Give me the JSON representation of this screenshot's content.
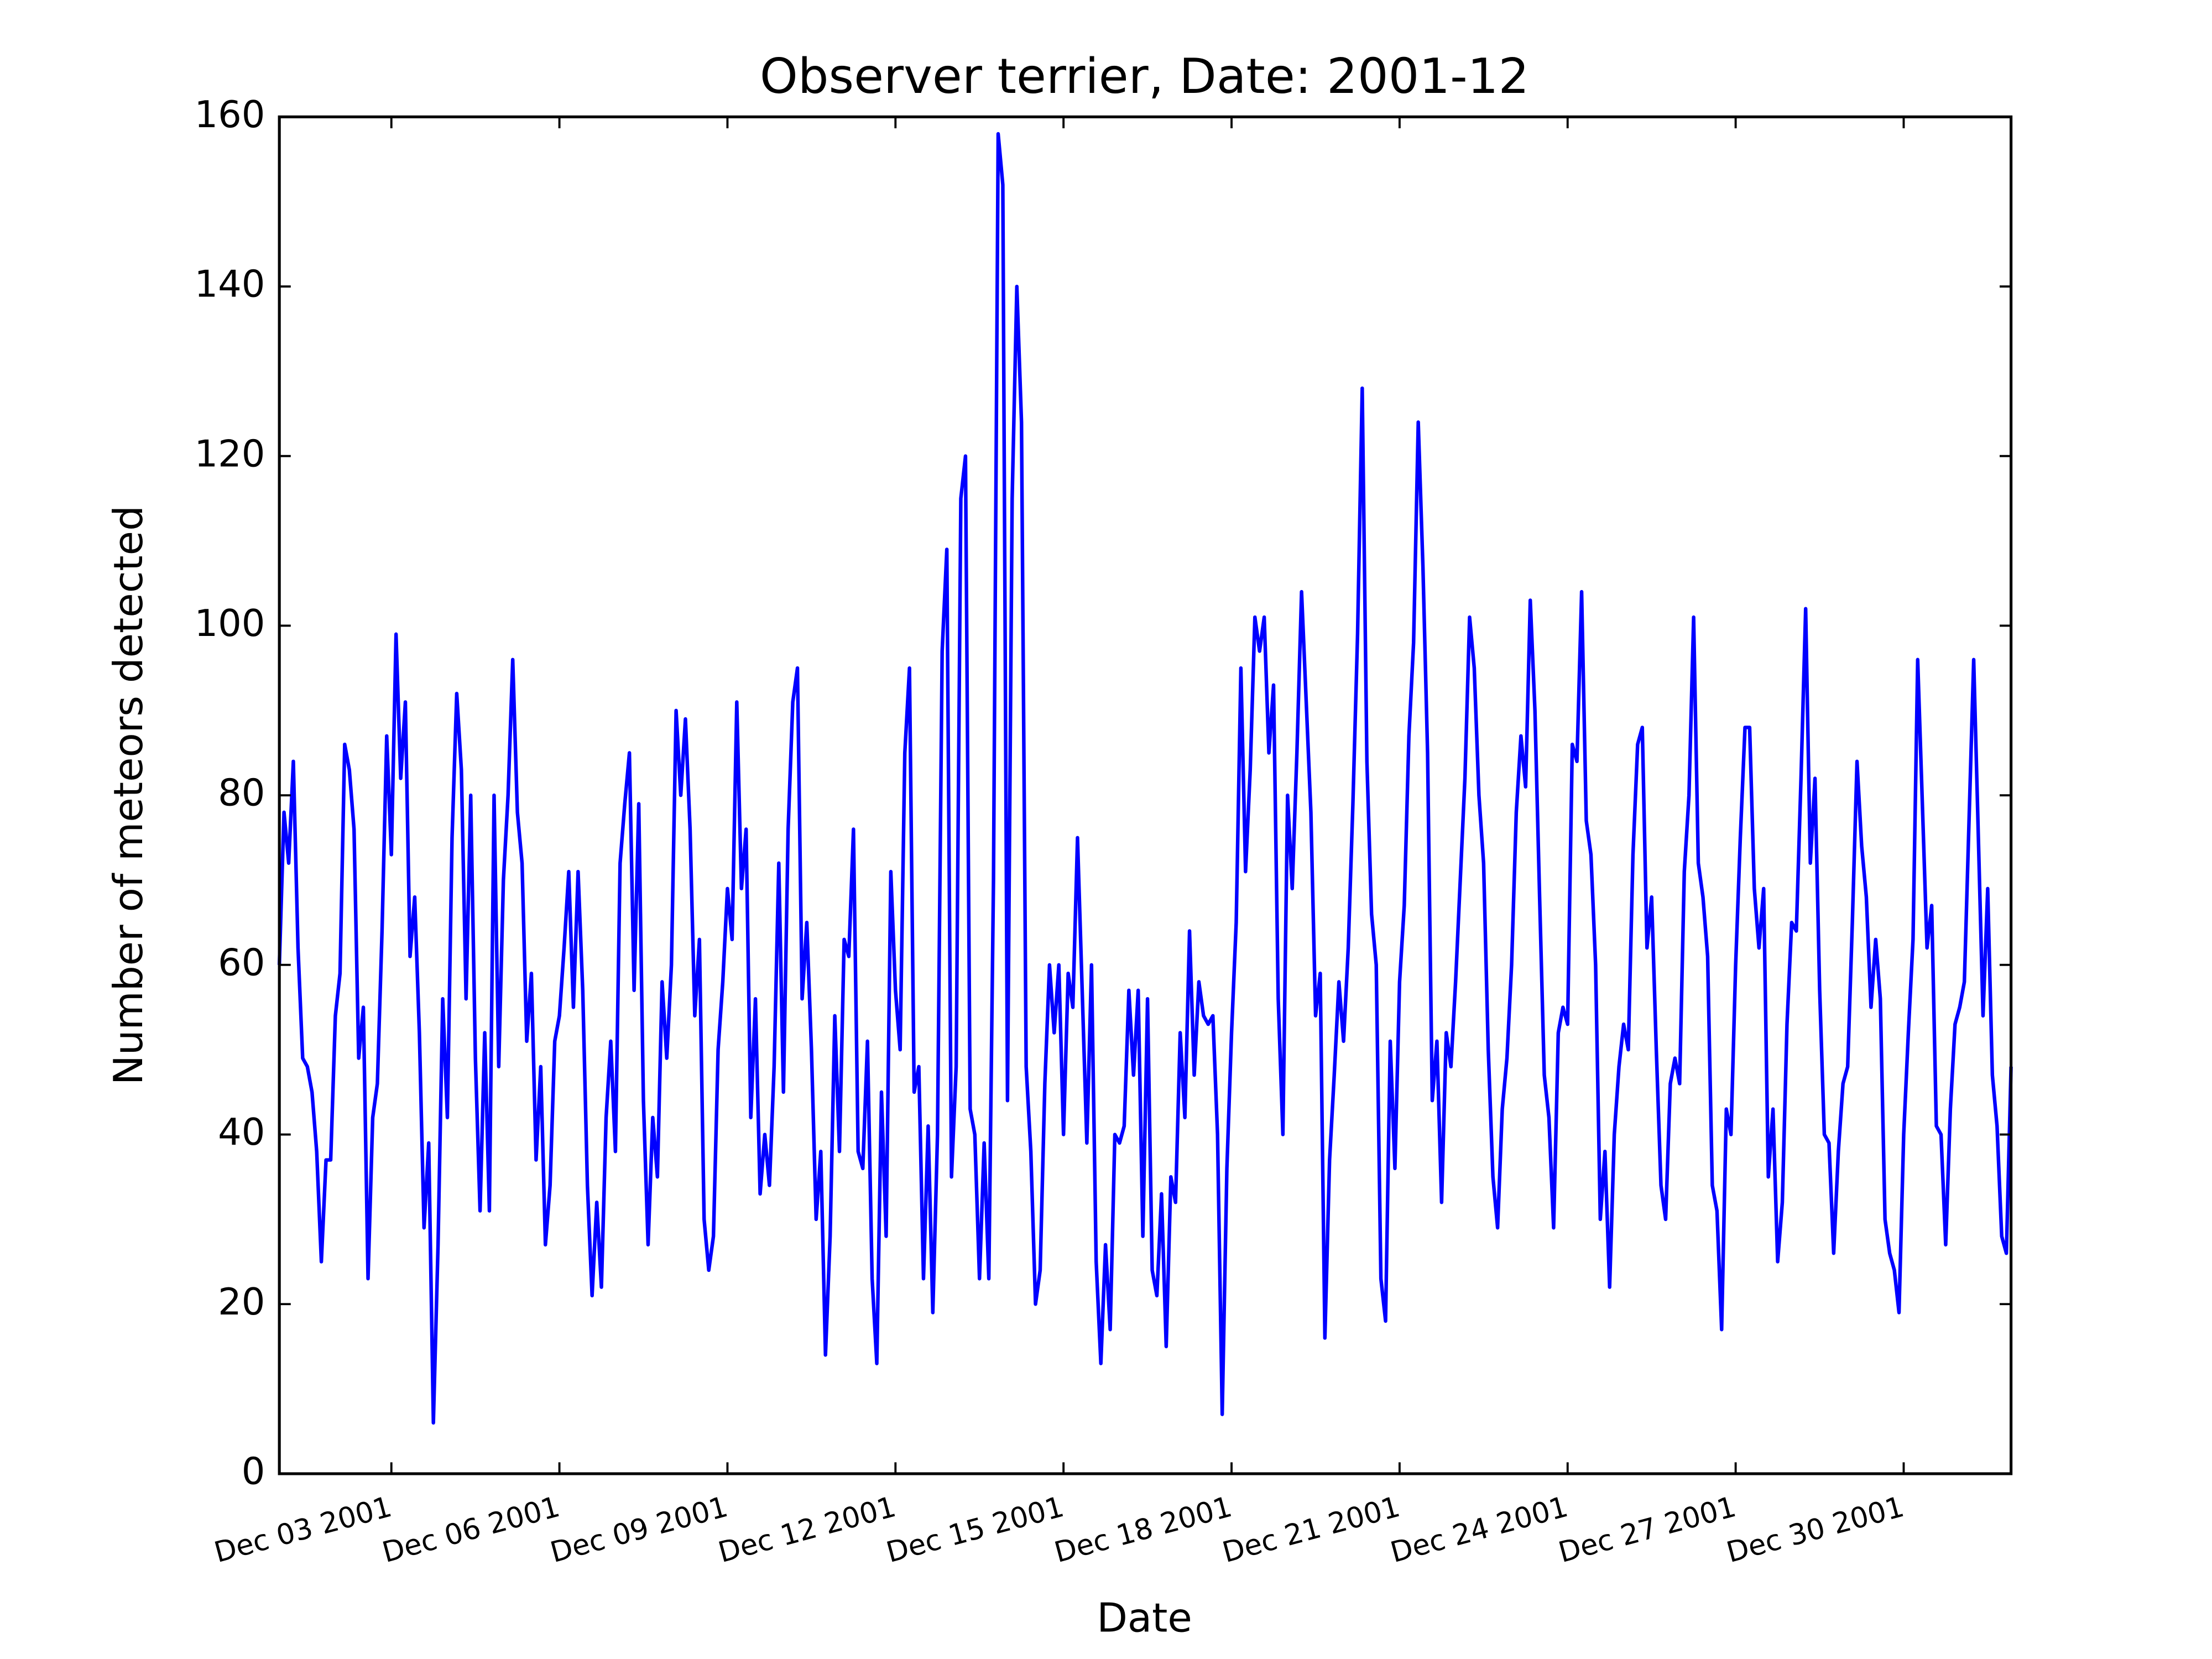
{
  "chart_data": {
    "type": "line",
    "title": "Observer terrier, Date: 2001-12",
    "xlabel": "Date",
    "ylabel": "Number of meteors detected",
    "color": "#0000ff",
    "ylim": [
      0,
      160
    ],
    "yticks": [
      0,
      20,
      40,
      60,
      80,
      100,
      120,
      140,
      160
    ],
    "xlim": [
      "2001-12-01 00:00",
      "2001-12-31 22:00"
    ],
    "xticks": [
      {
        "value": "2001-12-03 00:00",
        "label": "Dec 03 2001"
      },
      {
        "value": "2001-12-06 00:00",
        "label": "Dec 06 2001"
      },
      {
        "value": "2001-12-09 00:00",
        "label": "Dec 09 2001"
      },
      {
        "value": "2001-12-12 00:00",
        "label": "Dec 12 2001"
      },
      {
        "value": "2001-12-15 00:00",
        "label": "Dec 15 2001"
      },
      {
        "value": "2001-12-18 00:00",
        "label": "Dec 18 2001"
      },
      {
        "value": "2001-12-21 00:00",
        "label": "Dec 21 2001"
      },
      {
        "value": "2001-12-24 00:00",
        "label": "Dec 24 2001"
      },
      {
        "value": "2001-12-27 00:00",
        "label": "Dec 27 2001"
      },
      {
        "value": "2001-12-30 00:00",
        "label": "Dec 30 2001"
      }
    ],
    "x": [
      "2001-12-01 00:00",
      "2001-12-01 02:00",
      "2001-12-01 04:00",
      "2001-12-01 06:00",
      "2001-12-01 08:00",
      "2001-12-01 10:00",
      "2001-12-01 12:00",
      "2001-12-01 14:00",
      "2001-12-01 16:00",
      "2001-12-01 18:00",
      "2001-12-01 20:00",
      "2001-12-01 22:00",
      "2001-12-02 00:00",
      "2001-12-02 02:00",
      "2001-12-02 04:00",
      "2001-12-02 06:00",
      "2001-12-02 08:00",
      "2001-12-02 10:00",
      "2001-12-02 12:00",
      "2001-12-02 14:00",
      "2001-12-02 16:00",
      "2001-12-02 18:00",
      "2001-12-02 20:00",
      "2001-12-02 22:00",
      "2001-12-03 00:00",
      "2001-12-03 02:00",
      "2001-12-03 04:00",
      "2001-12-03 06:00",
      "2001-12-03 08:00",
      "2001-12-03 10:00",
      "2001-12-03 12:00",
      "2001-12-03 14:00",
      "2001-12-03 16:00",
      "2001-12-03 18:00",
      "2001-12-03 20:00",
      "2001-12-03 22:00",
      "2001-12-04 00:00",
      "2001-12-04 02:00",
      "2001-12-04 04:00",
      "2001-12-04 06:00",
      "2001-12-04 08:00",
      "2001-12-04 10:00",
      "2001-12-04 12:00",
      "2001-12-04 14:00",
      "2001-12-04 16:00",
      "2001-12-04 18:00",
      "2001-12-04 20:00",
      "2001-12-04 22:00",
      "2001-12-05 00:00",
      "2001-12-05 02:00",
      "2001-12-05 04:00",
      "2001-12-05 06:00",
      "2001-12-05 08:00",
      "2001-12-05 10:00",
      "2001-12-05 12:00",
      "2001-12-05 14:00",
      "2001-12-05 16:00",
      "2001-12-05 18:00",
      "2001-12-05 20:00",
      "2001-12-05 22:00",
      "2001-12-06 00:00",
      "2001-12-06 02:00",
      "2001-12-06 04:00",
      "2001-12-06 06:00",
      "2001-12-06 08:00",
      "2001-12-06 10:00",
      "2001-12-06 12:00",
      "2001-12-06 14:00",
      "2001-12-06 16:00",
      "2001-12-06 18:00",
      "2001-12-06 20:00",
      "2001-12-06 22:00",
      "2001-12-07 00:00",
      "2001-12-07 02:00",
      "2001-12-07 04:00",
      "2001-12-07 06:00",
      "2001-12-07 08:00",
      "2001-12-07 10:00",
      "2001-12-07 12:00",
      "2001-12-07 14:00",
      "2001-12-07 16:00",
      "2001-12-07 18:00",
      "2001-12-07 20:00",
      "2001-12-07 22:00",
      "2001-12-08 00:00",
      "2001-12-08 02:00",
      "2001-12-08 04:00",
      "2001-12-08 06:00",
      "2001-12-08 08:00",
      "2001-12-08 10:00",
      "2001-12-08 12:00",
      "2001-12-08 14:00",
      "2001-12-08 16:00",
      "2001-12-08 18:00",
      "2001-12-08 20:00",
      "2001-12-08 22:00",
      "2001-12-09 00:00",
      "2001-12-09 02:00",
      "2001-12-09 04:00",
      "2001-12-09 06:00",
      "2001-12-09 08:00",
      "2001-12-09 10:00",
      "2001-12-09 12:00",
      "2001-12-09 14:00",
      "2001-12-09 16:00",
      "2001-12-09 18:00",
      "2001-12-09 20:00",
      "2001-12-09 22:00",
      "2001-12-10 00:00",
      "2001-12-10 02:00",
      "2001-12-10 04:00",
      "2001-12-10 06:00",
      "2001-12-10 08:00",
      "2001-12-10 10:00",
      "2001-12-10 12:00",
      "2001-12-10 14:00",
      "2001-12-10 16:00",
      "2001-12-10 18:00",
      "2001-12-10 20:00",
      "2001-12-10 22:00",
      "2001-12-11 00:00",
      "2001-12-11 02:00",
      "2001-12-11 04:00",
      "2001-12-11 06:00",
      "2001-12-11 08:00",
      "2001-12-11 10:00",
      "2001-12-11 12:00",
      "2001-12-11 14:00",
      "2001-12-11 16:00",
      "2001-12-11 18:00",
      "2001-12-11 20:00",
      "2001-12-11 22:00",
      "2001-12-12 00:00",
      "2001-12-12 02:00",
      "2001-12-12 04:00",
      "2001-12-12 06:00",
      "2001-12-12 08:00",
      "2001-12-12 10:00",
      "2001-12-12 12:00",
      "2001-12-12 14:00",
      "2001-12-12 16:00",
      "2001-12-12 18:00",
      "2001-12-12 20:00",
      "2001-12-12 22:00",
      "2001-12-13 00:00",
      "2001-12-13 02:00",
      "2001-12-13 04:00",
      "2001-12-13 06:00",
      "2001-12-13 08:00",
      "2001-12-13 10:00",
      "2001-12-13 12:00",
      "2001-12-13 14:00",
      "2001-12-13 16:00",
      "2001-12-13 18:00",
      "2001-12-13 20:00",
      "2001-12-13 22:00",
      "2001-12-14 00:00",
      "2001-12-14 02:00",
      "2001-12-14 04:00",
      "2001-12-14 06:00",
      "2001-12-14 08:00",
      "2001-12-14 10:00",
      "2001-12-14 12:00",
      "2001-12-14 14:00",
      "2001-12-14 16:00",
      "2001-12-14 18:00",
      "2001-12-14 20:00",
      "2001-12-14 22:00",
      "2001-12-15 00:00",
      "2001-12-15 02:00",
      "2001-12-15 04:00",
      "2001-12-15 06:00",
      "2001-12-15 08:00",
      "2001-12-15 10:00",
      "2001-12-15 12:00",
      "2001-12-15 14:00",
      "2001-12-15 16:00",
      "2001-12-15 18:00",
      "2001-12-15 20:00",
      "2001-12-15 22:00",
      "2001-12-16 00:00",
      "2001-12-16 02:00",
      "2001-12-16 04:00",
      "2001-12-16 06:00",
      "2001-12-16 08:00",
      "2001-12-16 10:00",
      "2001-12-16 12:00",
      "2001-12-16 14:00",
      "2001-12-16 16:00",
      "2001-12-16 18:00",
      "2001-12-16 20:00",
      "2001-12-16 22:00",
      "2001-12-17 00:00",
      "2001-12-17 02:00",
      "2001-12-17 04:00",
      "2001-12-17 06:00",
      "2001-12-17 08:00",
      "2001-12-17 10:00",
      "2001-12-17 12:00",
      "2001-12-17 14:00",
      "2001-12-17 16:00",
      "2001-12-17 18:00",
      "2001-12-17 20:00",
      "2001-12-17 22:00",
      "2001-12-18 00:00",
      "2001-12-18 02:00",
      "2001-12-18 04:00",
      "2001-12-18 06:00",
      "2001-12-18 08:00",
      "2001-12-18 10:00",
      "2001-12-18 12:00",
      "2001-12-18 14:00",
      "2001-12-18 16:00",
      "2001-12-18 18:00",
      "2001-12-18 20:00",
      "2001-12-18 22:00",
      "2001-12-19 00:00",
      "2001-12-19 02:00",
      "2001-12-19 04:00",
      "2001-12-19 06:00",
      "2001-12-19 08:00",
      "2001-12-19 10:00",
      "2001-12-19 12:00",
      "2001-12-19 14:00",
      "2001-12-19 16:00",
      "2001-12-19 18:00",
      "2001-12-19 20:00",
      "2001-12-19 22:00",
      "2001-12-20 00:00",
      "2001-12-20 02:00",
      "2001-12-20 04:00",
      "2001-12-20 06:00",
      "2001-12-20 08:00",
      "2001-12-20 10:00",
      "2001-12-20 12:00",
      "2001-12-20 14:00",
      "2001-12-20 16:00",
      "2001-12-20 18:00",
      "2001-12-20 20:00",
      "2001-12-20 22:00",
      "2001-12-21 00:00",
      "2001-12-21 02:00",
      "2001-12-21 04:00",
      "2001-12-21 06:00",
      "2001-12-21 08:00",
      "2001-12-21 10:00",
      "2001-12-21 12:00",
      "2001-12-21 14:00",
      "2001-12-21 16:00",
      "2001-12-21 18:00",
      "2001-12-21 20:00",
      "2001-12-21 22:00",
      "2001-12-22 00:00",
      "2001-12-22 02:00",
      "2001-12-22 04:00",
      "2001-12-22 06:00",
      "2001-12-22 08:00",
      "2001-12-22 10:00",
      "2001-12-22 12:00",
      "2001-12-22 14:00",
      "2001-12-22 16:00",
      "2001-12-22 18:00",
      "2001-12-22 20:00",
      "2001-12-22 22:00",
      "2001-12-23 00:00",
      "2001-12-23 02:00",
      "2001-12-23 04:00",
      "2001-12-23 06:00",
      "2001-12-23 08:00",
      "2001-12-23 10:00",
      "2001-12-23 12:00",
      "2001-12-23 14:00",
      "2001-12-23 16:00",
      "2001-12-23 18:00",
      "2001-12-23 20:00",
      "2001-12-23 22:00",
      "2001-12-24 00:00",
      "2001-12-24 02:00",
      "2001-12-24 04:00",
      "2001-12-24 06:00",
      "2001-12-24 08:00",
      "2001-12-24 10:00",
      "2001-12-24 12:00",
      "2001-12-24 14:00",
      "2001-12-24 16:00",
      "2001-12-24 18:00",
      "2001-12-24 20:00",
      "2001-12-24 22:00",
      "2001-12-25 00:00",
      "2001-12-25 02:00",
      "2001-12-25 04:00",
      "2001-12-25 06:00",
      "2001-12-25 08:00",
      "2001-12-25 10:00",
      "2001-12-25 12:00",
      "2001-12-25 14:00",
      "2001-12-25 16:00",
      "2001-12-25 18:00",
      "2001-12-25 20:00",
      "2001-12-25 22:00",
      "2001-12-26 00:00",
      "2001-12-26 02:00",
      "2001-12-26 04:00",
      "2001-12-26 06:00",
      "2001-12-26 08:00",
      "2001-12-26 10:00",
      "2001-12-26 12:00",
      "2001-12-26 14:00",
      "2001-12-26 16:00",
      "2001-12-26 18:00",
      "2001-12-26 20:00",
      "2001-12-26 22:00",
      "2001-12-27 00:00",
      "2001-12-27 02:00",
      "2001-12-27 04:00",
      "2001-12-27 06:00",
      "2001-12-27 08:00",
      "2001-12-27 10:00",
      "2001-12-27 12:00",
      "2001-12-27 14:00",
      "2001-12-27 16:00",
      "2001-12-27 18:00",
      "2001-12-27 20:00",
      "2001-12-27 22:00",
      "2001-12-28 00:00",
      "2001-12-28 02:00",
      "2001-12-28 04:00",
      "2001-12-28 06:00",
      "2001-12-28 08:00",
      "2001-12-28 10:00",
      "2001-12-28 12:00",
      "2001-12-28 14:00",
      "2001-12-28 16:00",
      "2001-12-28 18:00",
      "2001-12-28 20:00",
      "2001-12-28 22:00",
      "2001-12-29 00:00",
      "2001-12-29 02:00",
      "2001-12-29 04:00",
      "2001-12-29 06:00",
      "2001-12-29 08:00",
      "2001-12-29 10:00",
      "2001-12-29 12:00",
      "2001-12-29 14:00",
      "2001-12-29 16:00",
      "2001-12-29 18:00",
      "2001-12-29 20:00",
      "2001-12-29 22:00",
      "2001-12-30 00:00",
      "2001-12-30 02:00",
      "2001-12-30 04:00",
      "2001-12-30 06:00",
      "2001-12-30 08:00",
      "2001-12-30 10:00",
      "2001-12-30 12:00",
      "2001-12-30 14:00",
      "2001-12-30 16:00",
      "2001-12-30 18:00",
      "2001-12-30 20:00",
      "2001-12-30 22:00",
      "2001-12-31 00:00",
      "2001-12-31 02:00",
      "2001-12-31 04:00",
      "2001-12-31 06:00",
      "2001-12-31 08:00",
      "2001-12-31 10:00",
      "2001-12-31 12:00",
      "2001-12-31 14:00",
      "2001-12-31 16:00",
      "2001-12-31 18:00",
      "2001-12-31 20:00",
      "2001-12-31 22:00"
    ],
    "values": [
      60,
      78,
      72,
      84,
      62,
      49,
      48,
      45,
      38,
      25,
      37,
      37,
      54,
      59,
      86,
      83,
      76,
      49,
      55,
      23,
      42,
      46,
      64,
      87,
      73,
      99,
      82,
      91,
      61,
      68,
      52,
      29,
      39,
      6,
      27,
      56,
      42,
      75,
      92,
      83,
      56,
      80,
      49,
      31,
      52,
      31,
      80,
      48,
      70,
      80,
      96,
      78,
      72,
      51,
      59,
      37,
      48,
      27,
      34,
      51,
      54,
      62,
      71,
      55,
      71,
      57,
      34,
      21,
      32,
      22,
      42,
      51,
      38,
      72,
      79,
      85,
      57,
      79,
      44,
      27,
      42,
      35,
      58,
      49,
      60,
      90,
      80,
      89,
      76,
      54,
      63,
      30,
      24,
      28,
      50,
      58,
      69,
      63,
      91,
      69,
      76,
      42,
      56,
      33,
      40,
      34,
      48,
      72,
      45,
      76,
      91,
      95,
      56,
      65,
      50,
      30,
      38,
      14,
      28,
      54,
      38,
      63,
      61,
      76,
      38,
      36,
      51,
      23,
      13,
      45,
      28,
      71,
      57,
      50,
      85,
      95,
      45,
      48,
      23,
      41,
      19,
      40,
      97,
      109,
      35,
      48,
      115,
      120,
      43,
      40,
      23,
      39,
      23,
      70,
      158,
      152,
      44,
      115,
      140,
      124,
      48,
      38,
      20,
      24,
      46,
      60,
      52,
      60,
      40,
      59,
      55,
      75,
      57,
      39,
      60,
      25,
      13,
      27,
      17,
      40,
      39,
      41,
      57,
      47,
      57,
      28,
      56,
      24,
      21,
      33,
      15,
      35,
      32,
      52,
      42,
      64,
      47,
      58,
      54,
      53,
      54,
      40,
      7,
      36,
      52,
      65,
      95,
      71,
      83,
      101,
      97,
      101,
      85,
      93,
      56,
      40,
      80,
      69,
      85,
      104,
      91,
      78,
      54,
      59,
      16,
      37,
      47,
      58,
      51,
      62,
      79,
      99,
      128,
      84,
      66,
      60,
      23,
      18,
      51,
      36,
      58,
      67,
      87,
      98,
      124,
      107,
      85,
      44,
      51,
      32,
      52,
      48,
      58,
      70,
      82,
      101,
      95,
      80,
      72,
      50,
      35,
      29,
      43,
      49,
      60,
      78,
      87,
      81,
      103,
      90,
      68,
      47,
      42,
      29,
      52,
      55,
      53,
      86,
      84,
      104,
      77,
      73,
      60,
      30,
      38,
      22,
      40,
      48,
      53,
      50,
      73,
      86,
      88,
      62,
      68,
      50,
      34,
      30,
      46,
      49,
      46,
      71,
      80,
      101,
      72,
      68,
      61,
      34,
      31,
      17,
      43,
      40,
      60,
      75,
      88,
      88,
      69,
      62,
      69,
      35,
      43,
      25,
      32,
      53,
      65,
      64,
      82,
      102,
      72,
      82,
      57,
      40,
      39,
      26,
      38,
      46,
      48,
      65,
      84,
      74,
      68,
      55,
      63,
      56,
      30,
      26,
      24,
      19,
      40,
      52,
      63,
      96,
      79,
      62,
      67,
      41,
      40,
      27,
      43,
      53,
      55,
      58,
      77,
      96,
      75,
      54,
      69,
      47,
      41,
      28,
      26,
      48
    ]
  }
}
